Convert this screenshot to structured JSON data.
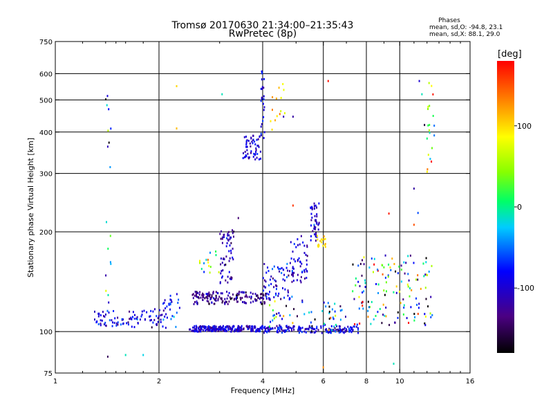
{
  "chart_data": {
    "type": "scatter",
    "title": "Tromsø 20170630 21:34:00–21:35:43",
    "subtitle": "RwPretec (8p)",
    "stats": {
      "heading": "Phases",
      "line1": "mean, sd,O: -94.8, 23.1",
      "line2": "mean, sd,X:  88.1, 29.0"
    },
    "xlabel": "Frequency [MHz]",
    "ylabel": "Stationary phase Virtual Height [km]",
    "x_scale": "log",
    "y_scale": "log",
    "xlim": [
      1,
      16
    ],
    "ylim": [
      75,
      750
    ],
    "x_ticks": [
      1,
      2,
      4,
      6,
      8,
      10,
      16
    ],
    "x_gridlines": [
      2,
      4,
      6,
      8,
      10
    ],
    "y_ticks": [
      75,
      100,
      200,
      300,
      400,
      500,
      600,
      750
    ],
    "y_gridlines": [
      100,
      200,
      300,
      400,
      500,
      600
    ],
    "grid": true,
    "colorbar": {
      "label": "[deg]",
      "range": [
        -180,
        180
      ],
      "ticks": [
        100,
        0,
        -100
      ],
      "colormap": "rainbow (black-purple-blue-cyan-green-yellow-orange-red)"
    },
    "point_groups": [
      {
        "x_range": [
          1.3,
          2.05
        ],
        "y_range": [
          103,
          117
        ],
        "count": 90,
        "phase_mean": -95,
        "phase_sd": 25
      },
      {
        "x_range": [
          2.05,
          2.3
        ],
        "y_range": [
          101,
          130
        ],
        "count": 30,
        "phase_mean": -85,
        "phase_sd": 25
      },
      {
        "x_range": [
          2.45,
          4.0
        ],
        "y_range": [
          100,
          104
        ],
        "count": 230,
        "phase_mean": -100,
        "phase_sd": 20
      },
      {
        "x_range": [
          4.0,
          7.6
        ],
        "y_range": [
          99,
          104
        ],
        "count": 180,
        "phase_mean": -95,
        "phase_sd": 22
      },
      {
        "x_range": [
          2.5,
          4.1
        ],
        "y_range": [
          121,
          132
        ],
        "count": 170,
        "phase_mean": -130,
        "phase_sd": 20
      },
      {
        "x_range": [
          3.0,
          3.3
        ],
        "y_range": [
          140,
          205
        ],
        "count": 60,
        "phase_mean": -115,
        "phase_sd": 20
      },
      {
        "x_range": [
          2.6,
          3.0
        ],
        "y_range": [
          150,
          175
        ],
        "count": 15,
        "phase_mean": 40,
        "phase_sd": 60
      },
      {
        "x_range": [
          3.5,
          3.95
        ],
        "y_range": [
          330,
          390
        ],
        "count": 55,
        "phase_mean": -100,
        "phase_sd": 20
      },
      {
        "x_range": [
          3.95,
          4.05
        ],
        "y_range": [
          380,
          610
        ],
        "count": 25,
        "phase_mean": -80,
        "phase_sd": 25
      },
      {
        "x_range": [
          4.0,
          4.9
        ],
        "y_range": [
          125,
          160
        ],
        "count": 70,
        "phase_mean": -95,
        "phase_sd": 25
      },
      {
        "x_range": [
          4.8,
          5.4
        ],
        "y_range": [
          140,
          195
        ],
        "count": 50,
        "phase_mean": -100,
        "phase_sd": 20
      },
      {
        "x_range": [
          5.5,
          5.85
        ],
        "y_range": [
          185,
          250
        ],
        "count": 45,
        "phase_mean": -100,
        "phase_sd": 20
      },
      {
        "x_range": [
          5.7,
          6.1
        ],
        "y_range": [
          180,
          195
        ],
        "count": 18,
        "phase_mean": 95,
        "phase_sd": 15
      },
      {
        "x_range": [
          4.2,
          4.7
        ],
        "y_range": [
          400,
          560
        ],
        "count": 14,
        "phase_mean": 100,
        "phase_sd": 20
      },
      {
        "x_range": [
          1.4,
          1.45
        ],
        "y_range": [
          84,
          570
        ],
        "count": 20,
        "phase_mean": -40,
        "phase_sd": 80
      },
      {
        "x_range": [
          12.0,
          12.6
        ],
        "y_range": [
          300,
          570
        ],
        "count": 20,
        "phase_mean": 60,
        "phase_sd": 80
      },
      {
        "x_range": [
          7.3,
          12.5
        ],
        "y_range": [
          104,
          170
        ],
        "count": 140,
        "phase_mean": -20,
        "phase_sd": 110
      },
      {
        "x_range": [
          4.0,
          7.0
        ],
        "y_range": [
          100,
          125
        ],
        "count": 60,
        "phase_mean": -40,
        "phase_sd": 90
      }
    ],
    "scattered_points": [
      {
        "x": 1.6,
        "y": 85,
        "phase": -10
      },
      {
        "x": 1.8,
        "y": 85,
        "phase": -20
      },
      {
        "x": 1.42,
        "y": 84,
        "phase": -150
      },
      {
        "x": 2.25,
        "y": 550,
        "phase": 100
      },
      {
        "x": 2.25,
        "y": 410,
        "phase": 110
      },
      {
        "x": 3.05,
        "y": 520,
        "phase": -10
      },
      {
        "x": 3.4,
        "y": 220,
        "phase": -140
      },
      {
        "x": 4.6,
        "y": 445,
        "phase": -110
      },
      {
        "x": 4.9,
        "y": 445,
        "phase": -120
      },
      {
        "x": 4.9,
        "y": 240,
        "phase": 160
      },
      {
        "x": 6.2,
        "y": 570,
        "phase": 175
      },
      {
        "x": 6.3,
        "y": 110,
        "phase": 150
      },
      {
        "x": 9.3,
        "y": 227,
        "phase": 170
      },
      {
        "x": 11.0,
        "y": 270,
        "phase": -120
      },
      {
        "x": 11.4,
        "y": 570,
        "phase": -100
      },
      {
        "x": 11.6,
        "y": 520,
        "phase": -10
      },
      {
        "x": 11.8,
        "y": 420,
        "phase": -160
      },
      {
        "x": 6.0,
        "y": 78,
        "phase": 130
      },
      {
        "x": 9.6,
        "y": 80,
        "phase": -10
      },
      {
        "x": 11.3,
        "y": 228,
        "phase": -60
      },
      {
        "x": 11.0,
        "y": 210,
        "phase": 150
      }
    ]
  }
}
